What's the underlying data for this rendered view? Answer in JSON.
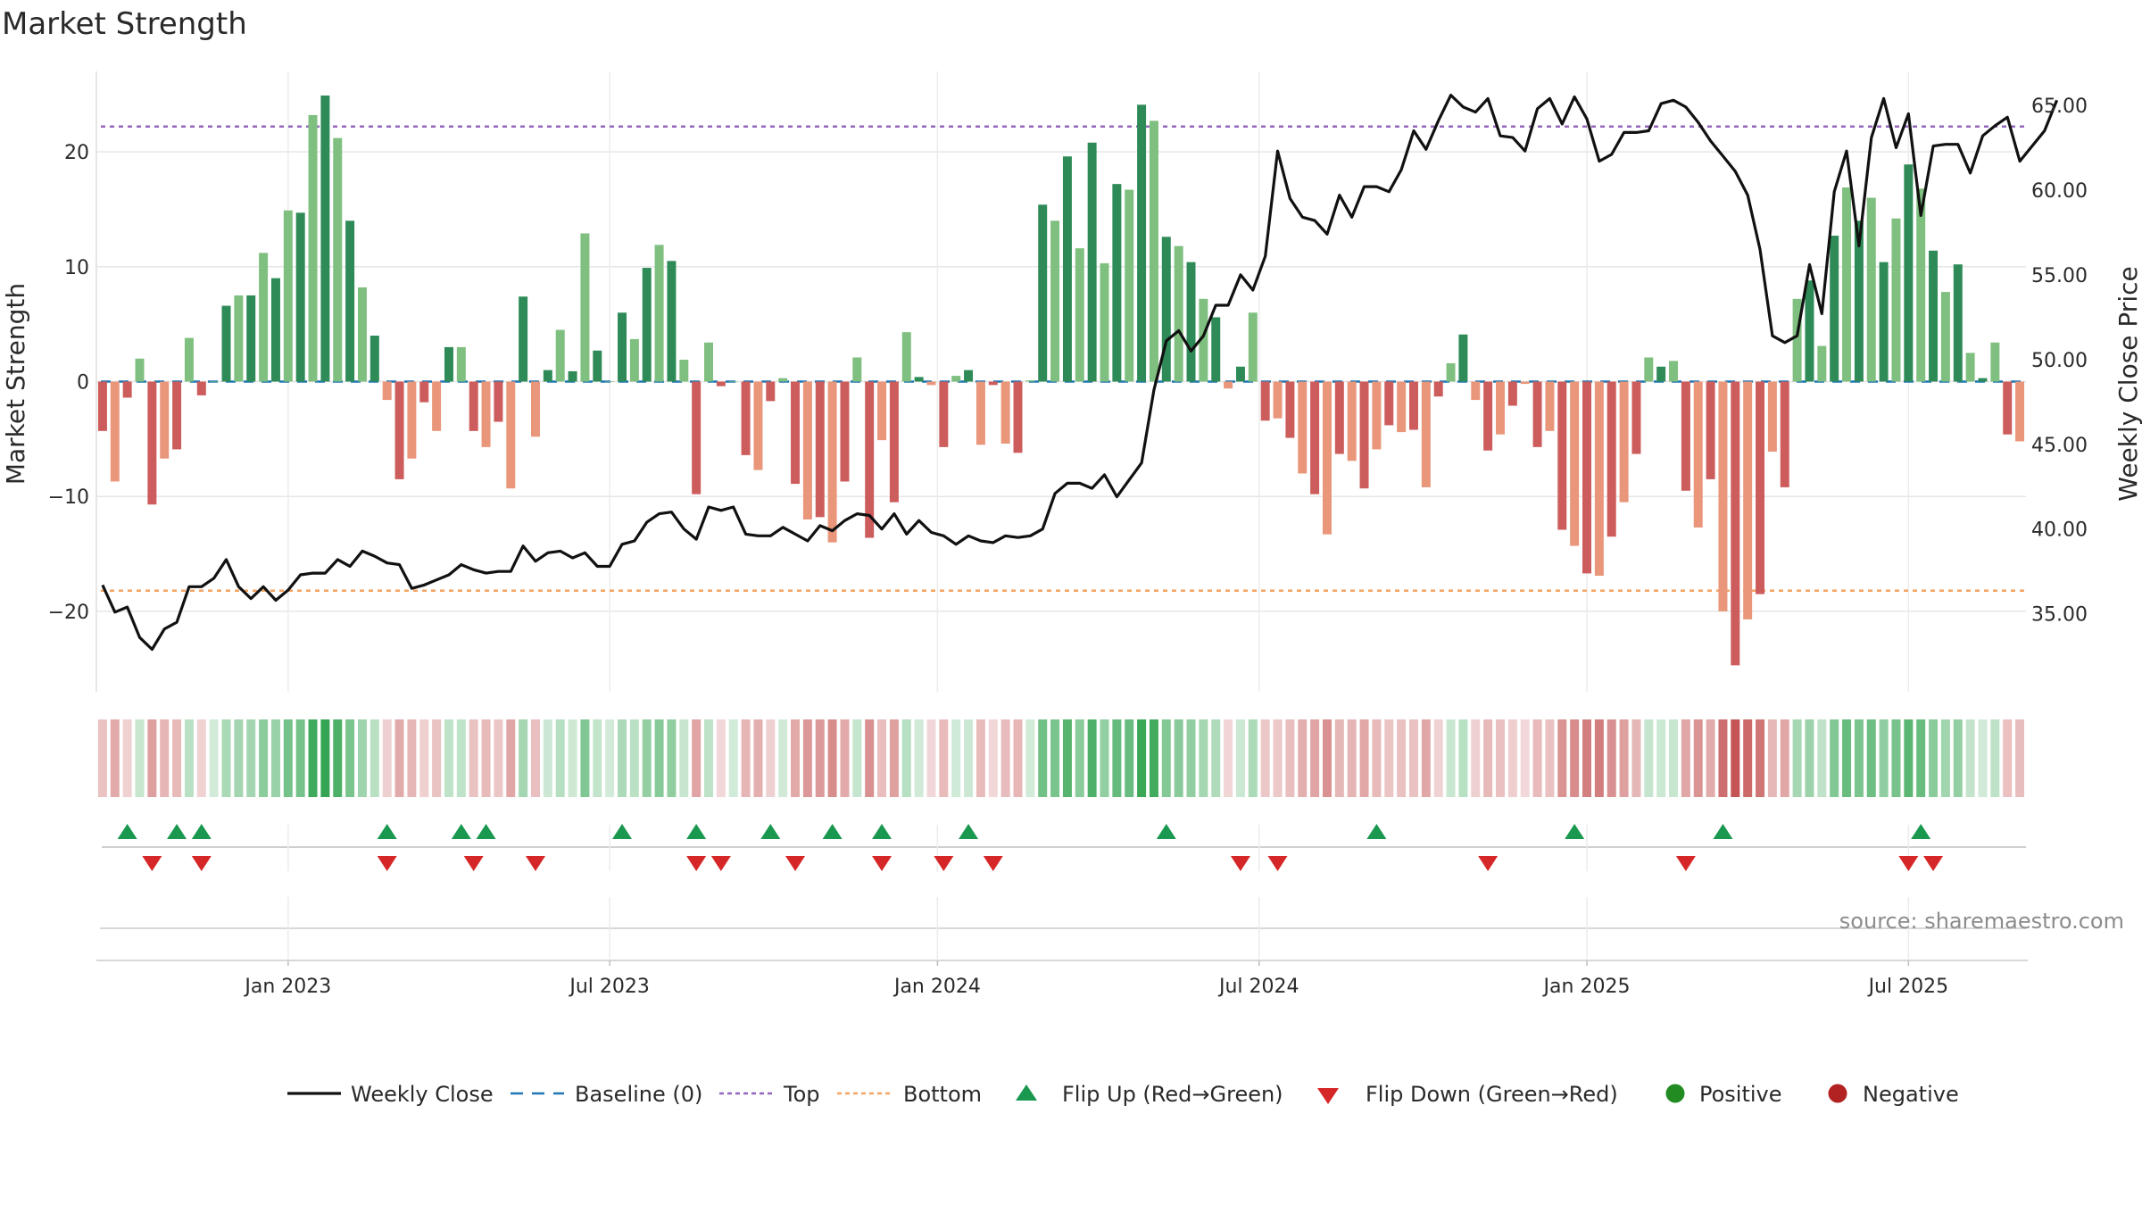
{
  "title": "Market Strength",
  "source": "source: sharemaestro.com",
  "chart_data": {
    "type": "bar",
    "title": "Market Strength",
    "ylabel_left": "Market Strength",
    "ylabel_right": "Weekly Close Price",
    "ylim_left": [
      -27,
      27
    ],
    "ylim_right": [
      30.4,
      67.0
    ],
    "left_ticks": [
      "−20",
      "−10",
      "0",
      "10",
      "20"
    ],
    "right_ticks": [
      "35.00",
      "40.00",
      "45.00",
      "50.00",
      "55.00",
      "60.00",
      "65.00"
    ],
    "x_ticks": [
      {
        "label": "Jan 2023",
        "week": 15
      },
      {
        "label": "Jul 2023",
        "week": 41
      },
      {
        "label": "Jan 2024",
        "week": 67.5
      },
      {
        "label": "Jul 2024",
        "week": 93.5
      },
      {
        "label": "Jan 2025",
        "week": 120
      },
      {
        "label": "Jul 2025",
        "week": 146
      }
    ],
    "top_level": 22.2,
    "bottom_level": -18.2,
    "baseline": 0,
    "colors": {
      "pos_strong": "#2e8b57",
      "pos_light": "#7fbf7f",
      "neg_strong": "#cd5c5c",
      "neg_light": "#e9967a",
      "close_line": "#111111",
      "baseline": "#1f77b4",
      "top": "#9467bd",
      "bottom": "#f4a460",
      "flip_up": "#1a9850",
      "flip_down": "#d62728",
      "positive": "#228b22",
      "negative": "#b22222"
    },
    "strength": [
      -4.3,
      -8.7,
      -1.4,
      2,
      -10.7,
      -6.7,
      -5.9,
      3.8,
      -1.2,
      0,
      6.6,
      7.5,
      7.5,
      11.2,
      9,
      14.9,
      14.7,
      23.2,
      24.9,
      21.2,
      14,
      8.2,
      4,
      -1.6,
      -8.5,
      -6.7,
      -1.8,
      -4.3,
      3,
      3,
      -4.3,
      -5.7,
      -3.5,
      -9.3,
      7.4,
      -4.8,
      1,
      4.5,
      0.9,
      12.9,
      2.7,
      0,
      6,
      3.7,
      9.9,
      11.9,
      10.5,
      1.9,
      -9.8,
      3.4,
      -0.4,
      0,
      -6.4,
      -7.7,
      -1.7,
      0.3,
      -8.9,
      -12,
      -11.8,
      -14,
      -8.7,
      2.1,
      -13.6,
      -5.1,
      -10.5,
      4.3,
      0.4,
      -0.3,
      -5.7,
      0.5,
      1,
      -5.5,
      -0.3,
      -5.4,
      -6.2,
      0.1,
      15.4,
      14,
      19.6,
      11.6,
      20.8,
      10.3,
      17.2,
      16.7,
      24.1,
      22.7,
      12.6,
      11.8,
      10.4,
      7.2,
      5.6,
      -0.6,
      1.3,
      6,
      -3.4,
      -3.2,
      -4.9,
      -8,
      -9.8,
      -13.3,
      -6.3,
      -6.9,
      -9.3,
      -5.9,
      -3.8,
      -4.4,
      -4.2,
      -9.2,
      -1.3,
      1.6,
      4.1,
      -1.6,
      -6,
      -4.6,
      -2.1,
      -0.2,
      -5.7,
      -4.3,
      -12.9,
      -14.3,
      -16.7,
      -16.9,
      -13.5,
      -10.5,
      -6.3,
      2.1,
      1.3,
      1.8,
      -9.5,
      -12.7,
      -8.5,
      -20,
      -24.7,
      -20.7,
      -18.5,
      -6.1,
      -9.2,
      7.2,
      8.8,
      3.1,
      12.7,
      16.9,
      14,
      16,
      10.4,
      14.2,
      18.9,
      16.8,
      11.4,
      7.8,
      10.2,
      2.5,
      0.3,
      3.4,
      -4.6,
      -5.2
    ],
    "weekly_close": [
      36.7,
      35.1,
      35.4,
      33.6,
      32.9,
      34.1,
      34.5,
      36.6,
      36.6,
      37.1,
      38.2,
      36.6,
      35.9,
      36.6,
      35.8,
      36.4,
      37.3,
      37.4,
      37.4,
      38.2,
      37.8,
      38.7,
      38.4,
      38.0,
      37.9,
      36.5,
      36.7,
      37.0,
      37.3,
      37.9,
      37.6,
      37.4,
      37.5,
      37.5,
      39.0,
      38.1,
      38.6,
      38.7,
      38.3,
      38.6,
      37.8,
      37.8,
      39.1,
      39.3,
      40.4,
      40.9,
      41.0,
      40.0,
      39.4,
      41.3,
      41.1,
      41.3,
      39.7,
      39.6,
      39.6,
      40.1,
      39.7,
      39.3,
      40.2,
      39.9,
      40.5,
      40.9,
      40.8,
      40.0,
      40.9,
      39.7,
      40.5,
      39.8,
      39.6,
      39.1,
      39.6,
      39.3,
      39.2,
      39.6,
      39.5,
      39.6,
      40.0,
      42.1,
      42.7,
      42.7,
      42.4,
      43.2,
      41.9,
      42.9,
      43.9,
      48.2,
      51.1,
      51.7,
      50.5,
      51.4,
      53.2,
      53.2,
      55.0,
      54.1,
      56.1,
      62.3,
      59.5,
      58.4,
      58.2,
      57.4,
      59.7,
      58.4,
      60.2,
      60.2,
      59.9,
      61.2,
      63.5,
      62.4,
      64.1,
      65.6,
      64.9,
      64.6,
      65.4,
      63.2,
      63.1,
      62.3,
      64.8,
      65.4,
      63.9,
      65.5,
      64.2,
      61.7,
      62.1,
      63.4,
      63.4,
      63.5,
      65.1,
      65.3,
      64.9,
      64.0,
      62.9,
      62.0,
      61.1,
      59.7,
      56.5,
      51.4,
      51.0,
      51.4,
      55.6,
      52.7,
      59.9,
      62.3,
      56.7,
      63.1,
      65.4,
      62.5,
      64.5,
      58.5,
      62.6,
      62.7,
      62.7,
      61.0,
      63.2,
      63.8,
      64.3,
      61.7,
      62.6,
      63.5,
      65.3
    ],
    "flip_up_weeks": [
      2,
      6,
      8,
      23,
      29,
      31,
      42,
      48,
      54,
      59,
      63,
      70,
      86,
      103,
      119,
      131,
      147
    ],
    "flip_down_weeks": [
      4,
      8,
      23,
      30,
      35,
      48,
      50,
      56,
      63,
      68,
      72,
      92,
      95,
      112,
      128,
      146,
      148
    ],
    "legend": [
      {
        "label": "Weekly Close",
        "icon": "solid-line",
        "color": "#111111"
      },
      {
        "label": "Baseline (0)",
        "icon": "dashed-line",
        "color": "#1f77b4"
      },
      {
        "label": "Top",
        "icon": "dotted-line",
        "color": "#9467bd"
      },
      {
        "label": "Bottom",
        "icon": "dotted-line",
        "color": "#f4a460"
      },
      {
        "label": "Flip Up (Red→Green)",
        "icon": "triangle-up",
        "color": "#1a9850"
      },
      {
        "label": "Flip Down (Green→Red)",
        "icon": "triangle-down",
        "color": "#d62728"
      },
      {
        "label": "Positive",
        "icon": "circle",
        "color": "#228b22"
      },
      {
        "label": "Negative",
        "icon": "circle",
        "color": "#b22222"
      }
    ],
    "legend_placement": "bottom-center",
    "grid": true
  }
}
